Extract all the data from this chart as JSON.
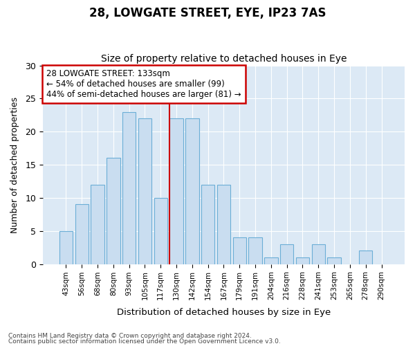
{
  "title1": "28, LOWGATE STREET, EYE, IP23 7AS",
  "title2": "Size of property relative to detached houses in Eye",
  "xlabel": "Distribution of detached houses by size in Eye",
  "ylabel": "Number of detached properties",
  "categories": [
    "43sqm",
    "56sqm",
    "68sqm",
    "80sqm",
    "93sqm",
    "105sqm",
    "117sqm",
    "130sqm",
    "142sqm",
    "154sqm",
    "167sqm",
    "179sqm",
    "191sqm",
    "204sqm",
    "216sqm",
    "228sqm",
    "241sqm",
    "253sqm",
    "265sqm",
    "278sqm",
    "290sqm"
  ],
  "values": [
    5,
    9,
    12,
    16,
    23,
    22,
    10,
    22,
    22,
    12,
    12,
    4,
    4,
    1,
    3,
    1,
    3,
    1,
    0,
    2,
    0
  ],
  "bar_color": "#c9ddf0",
  "bar_edge_color": "#6baed6",
  "ylim": [
    0,
    30
  ],
  "yticks": [
    0,
    5,
    10,
    15,
    20,
    25,
    30
  ],
  "annotation_text": "28 LOWGATE STREET: 133sqm\n← 54% of detached houses are smaller (99)\n44% of semi-detached houses are larger (81) →",
  "annotation_box_facecolor": "#ffffff",
  "annotation_box_edgecolor": "#cc0000",
  "vline_color": "#cc0000",
  "vline_bar_index": 7,
  "footer1": "Contains HM Land Registry data © Crown copyright and database right 2024.",
  "footer2": "Contains public sector information licensed under the Open Government Licence v3.0.",
  "fig_bg_color": "#ffffff",
  "plot_bg_color": "#dce9f5",
  "grid_color": "#ffffff",
  "title1_fontsize": 12,
  "title2_fontsize": 10
}
